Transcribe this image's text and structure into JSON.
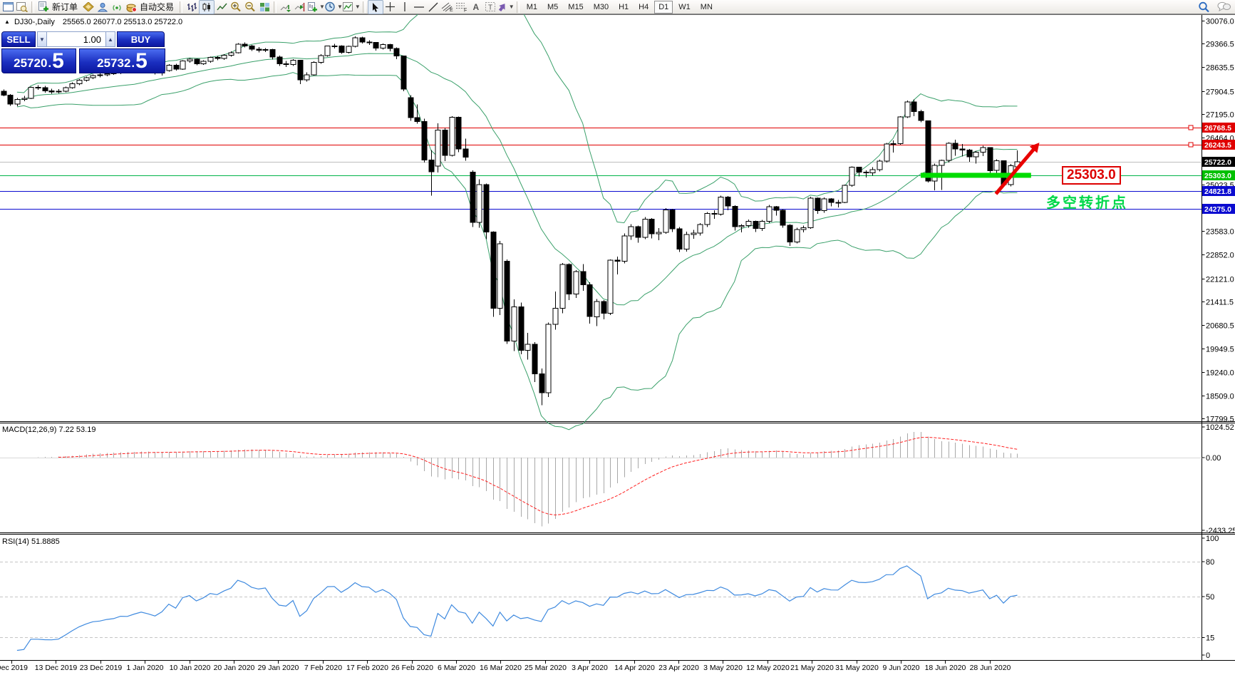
{
  "toolbar": {
    "new_order": "新订单",
    "autotrading": "自动交易",
    "timeframes": [
      "M1",
      "M5",
      "M15",
      "M30",
      "H1",
      "H4",
      "D1",
      "W1",
      "MN"
    ],
    "active_timeframe": "D1",
    "text_tool_a": "A",
    "text_tool_t": "T",
    "channel_sub": "E",
    "fibo_sub": "F"
  },
  "chart": {
    "title_symbol": "DJ30-,Daily",
    "title_ohlc": "25565.0 26077.0 25513.0 25722.0",
    "macd_label": "MACD(12,26,9) 7.22 53.19",
    "rsi_label": "RSI(14) 51.8885"
  },
  "trade_panel": {
    "sell_label": "SELL",
    "buy_label": "BUY",
    "volume": "1.00",
    "sell_price_main": "25720",
    "sell_price_big": "5",
    "buy_price_main": "25732",
    "buy_price_big": "5"
  },
  "annotations": {
    "price_box": "25303.0",
    "turning_point": "多空转折点"
  },
  "price_axis": {
    "ticks": [
      30076.0,
      29366.5,
      28635.5,
      27904.5,
      27195.0,
      26464.0,
      25023.5,
      23583.0,
      22852.0,
      22121.0,
      21411.5,
      20680.5,
      19949.5,
      19240.0,
      18509.0,
      17799.5
    ],
    "badges": [
      {
        "value": 26768.5,
        "bg": "#e00000"
      },
      {
        "value": 26243.5,
        "bg": "#e00000"
      },
      {
        "value": 25722.0,
        "bg": "#000000"
      },
      {
        "value": 25303.0,
        "bg": "#00c000"
      },
      {
        "value": 24821.8,
        "bg": "#0b0bd0"
      },
      {
        "value": 24275.0,
        "bg": "#0b0bd0"
      }
    ]
  },
  "macd_axis": [
    {
      "value": 1024.52,
      "label": "1024.52"
    },
    {
      "value": 0,
      "label": "0.00"
    },
    {
      "value": -2433.25,
      "label": "-2433.25"
    }
  ],
  "rsi_axis": [
    {
      "value": 100,
      "label": "100"
    },
    {
      "value": 80,
      "label": "80"
    },
    {
      "value": 50,
      "label": "50"
    },
    {
      "value": 15,
      "label": "15"
    },
    {
      "value": 0,
      "label": "0"
    }
  ],
  "chart_data": {
    "type": "candlestick",
    "symbol": "DJ30",
    "timeframe": "Daily",
    "title": "DJ30-,Daily 25565.0 26077.0 25513.0 25722.0",
    "y_range_main": [
      17799.5,
      30076.0
    ],
    "x_labels": [
      "Dec 2019",
      "13 Dec 2019",
      "23 Dec 2019",
      "1 Jan 2020",
      "10 Jan 2020",
      "20 Jan 2020",
      "29 Jan 2020",
      "7 Feb 2020",
      "17 Feb 2020",
      "26 Feb 2020",
      "6 Mar 2020",
      "16 Mar 2020",
      "25 Mar 2020",
      "3 Apr 2020",
      "14 Apr 2020",
      "23 Apr 2020",
      "3 May 2020",
      "12 May 2020",
      "21 May 2020",
      "31 May 2020",
      "9 Jun 2020",
      "18 Jun 2020",
      "28 Jun 2020"
    ],
    "candles": [
      [
        27900,
        27950,
        27740,
        27780
      ],
      [
        27780,
        27810,
        27450,
        27500
      ],
      [
        27500,
        27690,
        27440,
        27650
      ],
      [
        27650,
        27760,
        27590,
        27680
      ],
      [
        27680,
        28040,
        27660,
        28015
      ],
      [
        28015,
        28090,
        27940,
        28010
      ],
      [
        28010,
        28060,
        27850,
        27910
      ],
      [
        27910,
        27970,
        27820,
        27880
      ],
      [
        27880,
        27960,
        27830,
        27900
      ],
      [
        27900,
        28040,
        27870,
        28010
      ],
      [
        28010,
        28170,
        27980,
        28130
      ],
      [
        28130,
        28270,
        28090,
        28240
      ],
      [
        28240,
        28350,
        28190,
        28320
      ],
      [
        28320,
        28410,
        28270,
        28380
      ],
      [
        28380,
        28450,
        28330,
        28400
      ],
      [
        28400,
        28480,
        28360,
        28440
      ],
      [
        28440,
        28510,
        28400,
        28460
      ],
      [
        28460,
        28550,
        28430,
        28515
      ],
      [
        28515,
        28560,
        28460,
        28510
      ],
      [
        28510,
        28600,
        28480,
        28560
      ],
      [
        28560,
        28640,
        28520,
        28600
      ],
      [
        28600,
        28620,
        28470,
        28540
      ],
      [
        28540,
        28580,
        28420,
        28460
      ],
      [
        28460,
        28570,
        28380,
        28540
      ],
      [
        28540,
        28730,
        28500,
        28700
      ],
      [
        28700,
        28750,
        28540,
        28580
      ],
      [
        28580,
        28860,
        28560,
        28830
      ],
      [
        28830,
        28920,
        28780,
        28890
      ],
      [
        28890,
        28910,
        28700,
        28740
      ],
      [
        28740,
        28860,
        28710,
        28820
      ],
      [
        28820,
        28960,
        28780,
        28940
      ],
      [
        28940,
        28990,
        28850,
        28910
      ],
      [
        28910,
        29040,
        28870,
        29010
      ],
      [
        29010,
        29130,
        28970,
        29090
      ],
      [
        29090,
        29380,
        29060,
        29350
      ],
      [
        29350,
        29410,
        29250,
        29300
      ],
      [
        29300,
        29330,
        29140,
        29200
      ],
      [
        29200,
        29260,
        29100,
        29160
      ],
      [
        29160,
        29230,
        29110,
        29190
      ],
      [
        29190,
        29210,
        28880,
        28950
      ],
      [
        28950,
        29000,
        28680,
        28750
      ],
      [
        28750,
        28830,
        28650,
        28720
      ],
      [
        28720,
        28890,
        28680,
        28850
      ],
      [
        28850,
        28860,
        28120,
        28250
      ],
      [
        28250,
        28480,
        28200,
        28400
      ],
      [
        28400,
        28820,
        28380,
        28790
      ],
      [
        28790,
        29040,
        28750,
        29000
      ],
      [
        29000,
        29310,
        28970,
        29290
      ],
      [
        29290,
        29360,
        29220,
        29300
      ],
      [
        29300,
        29320,
        29050,
        29100
      ],
      [
        29100,
        29310,
        29060,
        29280
      ],
      [
        29280,
        29590,
        29250,
        29550
      ],
      [
        29550,
        29580,
        29370,
        29420
      ],
      [
        29420,
        29470,
        29330,
        29400
      ],
      [
        29400,
        29420,
        29150,
        29230
      ],
      [
        29230,
        29370,
        29180,
        29340
      ],
      [
        29340,
        29360,
        29130,
        29220
      ],
      [
        29220,
        29250,
        28890,
        28990
      ],
      [
        28990,
        29000,
        27900,
        27960
      ],
      [
        27700,
        27780,
        26990,
        27080
      ],
      [
        27080,
        27490,
        26900,
        26960
      ],
      [
        26960,
        27050,
        25700,
        25770
      ],
      [
        25770,
        26080,
        24680,
        25410
      ],
      [
        25590,
        26910,
        25390,
        26700
      ],
      [
        26700,
        26760,
        25740,
        25920
      ],
      [
        25920,
        27130,
        25880,
        27090
      ],
      [
        27090,
        27120,
        26020,
        26120
      ],
      [
        26120,
        26430,
        25750,
        25860
      ],
      [
        25400,
        25460,
        23710,
        23850
      ],
      [
        23850,
        25180,
        23690,
        25020
      ],
      [
        25020,
        25050,
        23330,
        23550
      ],
      [
        23550,
        23580,
        20930,
        21200
      ],
      [
        21200,
        23280,
        20990,
        23190
      ],
      [
        22650,
        22710,
        20100,
        20190
      ],
      [
        20190,
        21470,
        19880,
        21240
      ],
      [
        21240,
        21380,
        19780,
        19900
      ],
      [
        19900,
        20440,
        19610,
        20090
      ],
      [
        20090,
        20150,
        18920,
        19170
      ],
      [
        19170,
        19340,
        18210,
        18590
      ],
      [
        18590,
        20760,
        18460,
        20700
      ],
      [
        20700,
        21720,
        20540,
        21200
      ],
      [
        21200,
        22600,
        21050,
        22550
      ],
      [
        22550,
        22580,
        21450,
        21640
      ],
      [
        21640,
        22380,
        21520,
        22330
      ],
      [
        22330,
        22560,
        21740,
        21920
      ],
      [
        21920,
        22000,
        20730,
        20940
      ],
      [
        20940,
        21480,
        20650,
        21410
      ],
      [
        21410,
        21450,
        20860,
        21050
      ],
      [
        21050,
        22710,
        20990,
        22680
      ],
      [
        22680,
        22790,
        22240,
        22650
      ],
      [
        22650,
        23510,
        22580,
        23430
      ],
      [
        23430,
        23790,
        23310,
        23720
      ],
      [
        23720,
        23750,
        23220,
        23390
      ],
      [
        23390,
        24010,
        23330,
        23950
      ],
      [
        23950,
        23980,
        23360,
        23500
      ],
      [
        23500,
        23670,
        23300,
        23540
      ],
      [
        23540,
        24290,
        23500,
        24240
      ],
      [
        24240,
        24270,
        23550,
        23650
      ],
      [
        23650,
        23710,
        22940,
        23020
      ],
      [
        23020,
        23560,
        22950,
        23480
      ],
      [
        23480,
        23620,
        23340,
        23520
      ],
      [
        23520,
        23830,
        23440,
        23780
      ],
      [
        23780,
        24170,
        23710,
        24130
      ],
      [
        24130,
        24220,
        23960,
        24100
      ],
      [
        24100,
        24680,
        24060,
        24630
      ],
      [
        24630,
        24660,
        24220,
        24350
      ],
      [
        24350,
        24380,
        23600,
        23720
      ],
      [
        23720,
        23800,
        23540,
        23750
      ],
      [
        23750,
        23940,
        23680,
        23880
      ],
      [
        23880,
        23910,
        23550,
        23660
      ],
      [
        23660,
        23930,
        23590,
        23880
      ],
      [
        23880,
        24390,
        23830,
        24330
      ],
      [
        24330,
        24360,
        24060,
        24220
      ],
      [
        24220,
        24260,
        23680,
        23760
      ],
      [
        23760,
        23790,
        23120,
        23250
      ],
      [
        23250,
        23680,
        23200,
        23630
      ],
      [
        23630,
        23750,
        23540,
        23690
      ],
      [
        23690,
        24640,
        23650,
        24600
      ],
      [
        24600,
        24620,
        24110,
        24210
      ],
      [
        24210,
        24620,
        24150,
        24580
      ],
      [
        24580,
        24600,
        24340,
        24470
      ],
      [
        24470,
        24540,
        24310,
        24465
      ],
      [
        24465,
        25020,
        24440,
        24995
      ],
      [
        24995,
        25580,
        24950,
        25550
      ],
      [
        25550,
        25570,
        25270,
        25400
      ],
      [
        25400,
        25460,
        25240,
        25380
      ],
      [
        25380,
        25560,
        25290,
        25480
      ],
      [
        25480,
        25790,
        25420,
        25740
      ],
      [
        25740,
        26300,
        25700,
        26270
      ],
      [
        26270,
        26380,
        26010,
        26280
      ],
      [
        26280,
        27130,
        26250,
        27110
      ],
      [
        27110,
        27610,
        27070,
        27570
      ],
      [
        27570,
        27640,
        27130,
        27270
      ],
      [
        27270,
        27330,
        26940,
        26990
      ],
      [
        26990,
        27000,
        25080,
        25130
      ],
      [
        25130,
        25660,
        24840,
        25610
      ],
      [
        25610,
        25790,
        24850,
        25760
      ],
      [
        25760,
        26330,
        25700,
        26290
      ],
      [
        26290,
        26400,
        25910,
        26120
      ],
      [
        26120,
        26270,
        25890,
        26080
      ],
      [
        26080,
        26120,
        25720,
        25870
      ],
      [
        25870,
        26060,
        25670,
        26020
      ],
      [
        26020,
        26220,
        25900,
        26160
      ],
      [
        26160,
        26170,
        25280,
        25450
      ],
      [
        25450,
        25800,
        25380,
        25750
      ],
      [
        25750,
        25760,
        24970,
        25020
      ],
      [
        25020,
        25650,
        24960,
        25600
      ],
      [
        25565,
        26077,
        25513,
        25722
      ]
    ],
    "levels": [
      {
        "price": 26768.5,
        "color": "#e00000",
        "handle": true
      },
      {
        "price": 26243.5,
        "color": "#e00000",
        "handle": true
      },
      {
        "price": 25722.0,
        "color": "#bdbdbd",
        "role": "current-price"
      },
      {
        "price": 25303.0,
        "color": "#00b44a"
      },
      {
        "price": 24821.8,
        "color": "#0b0bd0"
      },
      {
        "price": 24275.0,
        "color": "#0b0bd0"
      }
    ],
    "green_segment": {
      "price": 25303.0,
      "bar_start": 133,
      "bar_end": 149,
      "color": "#00dc00"
    },
    "arrow": {
      "from": [
        143.9,
        24730
      ],
      "to": [
        149.6,
        26160
      ],
      "color": "#e80000"
    },
    "indicators": {
      "bollinger": {
        "period": 20,
        "deviation": 2,
        "color": "#3aa06a"
      },
      "macd": {
        "fast": 12,
        "slow": 26,
        "signal": 9,
        "current_main": 7.22,
        "current_signal": 53.19,
        "hist_color": "#a8a8a8",
        "signal_color": "#ff2020",
        "y_range": [
          -2433.25,
          1024.52
        ]
      },
      "rsi": {
        "period": 14,
        "current": 51.8885,
        "color": "#3f8adf",
        "levels": [
          80,
          50,
          15
        ]
      }
    }
  }
}
